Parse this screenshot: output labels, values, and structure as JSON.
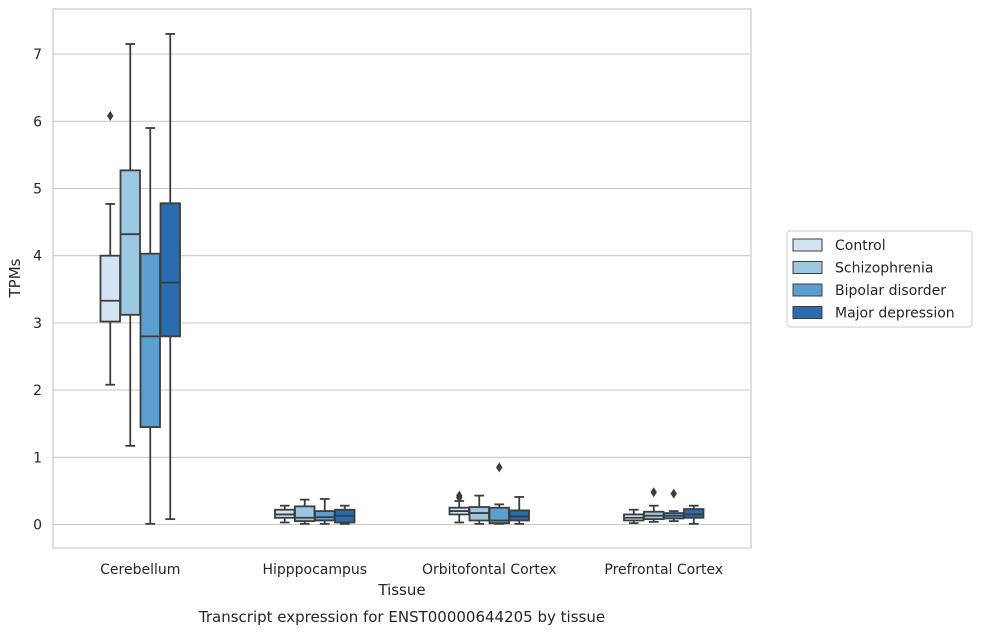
{
  "chart_data": {
    "type": "box",
    "title": "Transcript expression for ENST00000644205 by tissue",
    "xlabel": "Tissue",
    "ylabel": "TPMs",
    "ylim": [
      -0.35,
      7.65
    ],
    "yticks": [
      0,
      1,
      2,
      3,
      4,
      5,
      6,
      7
    ],
    "grid": "horizontal",
    "legend_position": "right",
    "categories": [
      "Cerebellum",
      "Hipppocampus",
      "Orbitofontal Cortex",
      "Prefrontal Cortex"
    ],
    "series": [
      {
        "name": "Control",
        "color": "#d2e3f3",
        "boxes": [
          {
            "whislo": 2.08,
            "q1": 3.02,
            "med": 3.33,
            "q3": 4.0,
            "whishi": 4.77,
            "fliers": [
              6.08
            ]
          },
          {
            "whislo": 0.03,
            "q1": 0.1,
            "med": 0.15,
            "q3": 0.22,
            "whishi": 0.28,
            "fliers": []
          },
          {
            "whislo": 0.03,
            "q1": 0.15,
            "med": 0.2,
            "q3": 0.25,
            "whishi": 0.35,
            "fliers": [
              0.43,
              0.4
            ]
          },
          {
            "whislo": 0.02,
            "q1": 0.06,
            "med": 0.1,
            "q3": 0.15,
            "whishi": 0.22,
            "fliers": []
          }
        ]
      },
      {
        "name": "Schizophrenia",
        "color": "#9ac8e0",
        "boxes": [
          {
            "whislo": 1.17,
            "q1": 3.12,
            "med": 4.32,
            "q3": 5.27,
            "whishi": 7.15,
            "fliers": []
          },
          {
            "whislo": 0.01,
            "q1": 0.05,
            "med": 0.1,
            "q3": 0.27,
            "whishi": 0.37,
            "fliers": []
          },
          {
            "whislo": 0.01,
            "q1": 0.06,
            "med": 0.17,
            "q3": 0.26,
            "whishi": 0.43,
            "fliers": []
          },
          {
            "whislo": 0.04,
            "q1": 0.08,
            "med": 0.13,
            "q3": 0.19,
            "whishi": 0.28,
            "fliers": [
              0.48
            ]
          }
        ]
      },
      {
        "name": "Bipolar disorder",
        "color": "#5a9fcf",
        "boxes": [
          {
            "whislo": 0.01,
            "q1": 1.45,
            "med": 2.8,
            "q3": 4.03,
            "whishi": 5.9,
            "fliers": []
          },
          {
            "whislo": 0.01,
            "q1": 0.06,
            "med": 0.11,
            "q3": 0.2,
            "whishi": 0.38,
            "fliers": []
          },
          {
            "whislo": 0.01,
            "q1": 0.02,
            "med": 0.06,
            "q3": 0.25,
            "whishi": 0.3,
            "fliers": [
              0.85
            ]
          },
          {
            "whislo": 0.05,
            "q1": 0.09,
            "med": 0.13,
            "q3": 0.17,
            "whishi": 0.2,
            "fliers": [
              0.46
            ]
          }
        ]
      },
      {
        "name": "Major depression",
        "color": "#2a6cb0",
        "boxes": [
          {
            "whislo": 0.08,
            "q1": 2.8,
            "med": 3.6,
            "q3": 4.78,
            "whishi": 7.3,
            "fliers": []
          },
          {
            "whislo": 0.01,
            "q1": 0.03,
            "med": 0.13,
            "q3": 0.22,
            "whishi": 0.28,
            "fliers": []
          },
          {
            "whislo": 0.01,
            "q1": 0.06,
            "med": 0.12,
            "q3": 0.21,
            "whishi": 0.41,
            "fliers": []
          },
          {
            "whislo": 0.01,
            "q1": 0.1,
            "med": 0.15,
            "q3": 0.23,
            "whishi": 0.28,
            "fliers": []
          }
        ]
      }
    ]
  }
}
